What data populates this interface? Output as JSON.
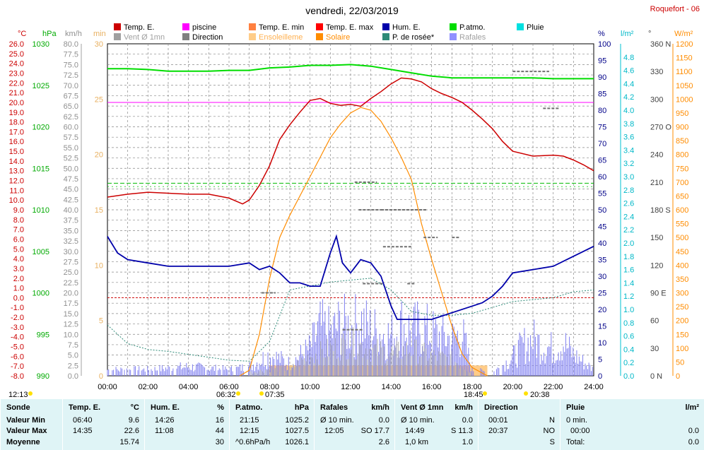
{
  "title": "vendredi, 22/03/2019",
  "station": "Roquefort - 06",
  "legend": [
    {
      "label": "Temp. E.",
      "color": "#cc0000"
    },
    {
      "label": "piscine",
      "color": "#ff00ff"
    },
    {
      "label": "Temp. E. min",
      "color": "#ff8040"
    },
    {
      "label": "Temp. E. max",
      "color": "#ff0000"
    },
    {
      "label": "Hum. E.",
      "color": "#0000aa"
    },
    {
      "label": "P.atmo.",
      "color": "#00dd00"
    },
    {
      "label": "Pluie",
      "color": "#00e0e0"
    },
    {
      "label": "Vent Ø 1mn",
      "color": "#a0a0a0"
    },
    {
      "label": "Direction",
      "color": "#808080"
    },
    {
      "label": "Ensoleilleme",
      "color": "#ffcc88"
    },
    {
      "label": "Solaire",
      "color": "#ff8c00"
    },
    {
      "label": "P. de rosée*",
      "color": "#2e8b78"
    },
    {
      "label": "Rafales",
      "color": "#9090ff"
    }
  ],
  "axis_units": {
    "temp": "°C",
    "pressure": "hPa",
    "wind": "km/h",
    "sunshine": "min",
    "humidity": "%",
    "rain": "l/m²",
    "direction": "°",
    "solar": "W/m²"
  },
  "axis_ticks": {
    "temp": [
      "26.0",
      "25.0",
      "24.0",
      "23.0",
      "22.0",
      "21.0",
      "20.0",
      "19.0",
      "18.0",
      "17.0",
      "16.0",
      "15.0",
      "14.0",
      "13.0",
      "12.0",
      "11.0",
      "10.0",
      "9.0",
      "8.0",
      "7.0",
      "6.0",
      "5.0",
      "4.0",
      "3.0",
      "2.0",
      "1.0",
      "0.0",
      "-1.0",
      "-2.0",
      "-3.0",
      "-4.0",
      "-5.0",
      "-6.0",
      "-7.0",
      "-8.0"
    ],
    "pressure": [
      "1030",
      "1025",
      "1020",
      "1015",
      "1010",
      "1005",
      "1000",
      "995",
      "990"
    ],
    "wind": [
      "80.0",
      "77.5",
      "75.0",
      "72.5",
      "70.0",
      "67.5",
      "65.0",
      "62.5",
      "60.0",
      "57.5",
      "55.0",
      "52.5",
      "50.0",
      "47.5",
      "45.0",
      "42.5",
      "40.0",
      "37.5",
      "35.0",
      "32.5",
      "30.0",
      "27.5",
      "25.0",
      "22.5",
      "20.0",
      "17.5",
      "15.0",
      "12.5",
      "10.0",
      "7.5",
      "5.0",
      "2.5",
      "0.0"
    ],
    "sunshine": [
      "30",
      "25",
      "20",
      "15",
      "10",
      "5",
      "0"
    ],
    "humidity": [
      "100",
      "95",
      "90",
      "85",
      "80",
      "75",
      "70",
      "65",
      "60",
      "55",
      "50",
      "45",
      "40",
      "35",
      "30",
      "25",
      "20",
      "15",
      "10",
      "5",
      "0"
    ],
    "rain": [
      "4.8",
      "4.6",
      "4.4",
      "4.2",
      "4.0",
      "3.8",
      "3.6",
      "3.4",
      "3.2",
      "3.0",
      "2.8",
      "2.6",
      "2.4",
      "2.2",
      "2.0",
      "1.8",
      "1.6",
      "1.4",
      "1.2",
      "1.0",
      "0.8",
      "0.6",
      "0.4",
      "0.2",
      "0.0"
    ],
    "direction": [
      "360 N",
      "330",
      "300",
      "270 O",
      "240",
      "210",
      "180 S",
      "150",
      "120",
      "90 E",
      "60",
      "30",
      "0 N"
    ],
    "solar": [
      "1200",
      "1150",
      "1100",
      "1050",
      "1000",
      "950",
      "900",
      "850",
      "800",
      "750",
      "700",
      "650",
      "600",
      "550",
      "500",
      "450",
      "400",
      "350",
      "300",
      "250",
      "200",
      "150",
      "100",
      "50",
      "0"
    ],
    "time": [
      "00:00",
      "02:00",
      "04:00",
      "06:00",
      "08:00",
      "10:00",
      "12:00",
      "14:00",
      "16:00",
      "18:00",
      "20:00",
      "22:00",
      "24:00"
    ]
  },
  "time_markers": [
    "12:13",
    "06:32",
    "07:35",
    "18:45",
    "20:38"
  ],
  "chart_data": {
    "type": "line",
    "x_unit": "hours",
    "xlim": [
      0,
      24
    ],
    "pool_temp": 20.0,
    "series": [
      {
        "name": "Temp. E.",
        "unit": "°C",
        "x": [
          0,
          1,
          2,
          3,
          4,
          5,
          6,
          6.67,
          7,
          7.5,
          8,
          8.5,
          9,
          9.5,
          10,
          10.5,
          11,
          11.5,
          12,
          12.5,
          13,
          13.5,
          14,
          14.5,
          15,
          15.5,
          16,
          16.5,
          17,
          17.5,
          18,
          18.5,
          19,
          19.5,
          20,
          21,
          22,
          22.5,
          23,
          23.5,
          24
        ],
        "y": [
          10.3,
          10.6,
          10.8,
          10.7,
          10.6,
          10.6,
          10.2,
          9.6,
          10.0,
          11.5,
          13.5,
          16.2,
          17.7,
          19.0,
          20.2,
          20.4,
          19.9,
          19.7,
          19.8,
          19.6,
          20.4,
          21.1,
          21.9,
          22.5,
          22.4,
          22.1,
          21.4,
          20.9,
          20.5,
          20.0,
          19.2,
          18.3,
          17.3,
          16.0,
          15.0,
          14.5,
          14.6,
          14.5,
          14.1,
          13.6,
          13.0
        ]
      },
      {
        "name": "Hum. E.",
        "unit": "%",
        "x": [
          0,
          0.5,
          1,
          2,
          3,
          4,
          5,
          6,
          7,
          7.5,
          8,
          8.5,
          9,
          9.5,
          10,
          10.5,
          11,
          11.3,
          11.6,
          12,
          12.5,
          13,
          13.5,
          14,
          14.3,
          15,
          16,
          17,
          18,
          18.5,
          19,
          19.5,
          20,
          21,
          22,
          23,
          24
        ],
        "y": [
          42,
          37,
          35,
          34,
          33,
          33,
          33,
          33,
          34,
          32,
          33,
          31,
          28,
          28,
          27,
          27,
          37,
          42,
          34,
          31,
          35,
          34,
          30,
          21,
          17,
          17,
          17,
          19,
          21,
          22,
          24,
          27,
          31,
          32,
          33,
          36,
          39
        ]
      },
      {
        "name": "P.atmo.",
        "unit": "hPa",
        "x": [
          0,
          1,
          2,
          3,
          4,
          5,
          6,
          7,
          8,
          9,
          10,
          11,
          12,
          13,
          14,
          15,
          16,
          17,
          18,
          19,
          20,
          21,
          22,
          23,
          24
        ],
        "y": [
          1027.0,
          1027.0,
          1026.9,
          1026.7,
          1026.7,
          1026.7,
          1026.8,
          1026.8,
          1027.1,
          1027.2,
          1027.4,
          1027.4,
          1027.5,
          1027.3,
          1026.9,
          1026.5,
          1026.1,
          1025.9,
          1025.9,
          1025.9,
          1025.9,
          1025.9,
          1025.8,
          1025.8,
          1025.8
        ]
      },
      {
        "name": "P. de rosée*",
        "unit": "°C",
        "x": [
          0,
          1,
          2,
          3,
          4,
          5,
          6,
          7,
          8,
          9,
          10,
          11,
          12,
          13,
          14,
          15,
          16,
          17,
          18,
          19,
          20,
          21,
          22,
          23,
          24
        ],
        "y": [
          -2.8,
          -4.7,
          -5.3,
          -5.5,
          -5.8,
          -6.1,
          -6.4,
          -6.5,
          -4.5,
          0.8,
          1.2,
          1.6,
          1.8,
          2.0,
          0.8,
          -1.4,
          -1.8,
          -1.8,
          -1.6,
          -1.0,
          -0.4,
          -0.2,
          0.0,
          0.6,
          0.8
        ]
      },
      {
        "name": "Solaire",
        "unit": "W/m²",
        "x": [
          6.53,
          7,
          7.5,
          8,
          8.5,
          9,
          9.5,
          10,
          10.5,
          11,
          11.5,
          12,
          12.5,
          13,
          13.5,
          14,
          14.5,
          15,
          15.5,
          16,
          16.5,
          17,
          17.5,
          18,
          18.75
        ],
        "y": [
          0,
          20,
          150,
          350,
          500,
          580,
          650,
          720,
          790,
          860,
          910,
          950,
          970,
          960,
          920,
          860,
          790,
          710,
          550,
          420,
          300,
          180,
          80,
          30,
          0
        ]
      },
      {
        "name": "Rafales",
        "unit": "km/h",
        "x": [
          0,
          2,
          4,
          6,
          7,
          8,
          9,
          10,
          10.5,
          11,
          11.5,
          12,
          12.5,
          13,
          13.5,
          14,
          14.5,
          15,
          15.5,
          16,
          16.5,
          17,
          17.5,
          18,
          19,
          20,
          20.5,
          21,
          21.5,
          22,
          22.5,
          23,
          24
        ],
        "y": [
          2,
          2,
          3,
          2,
          3,
          7,
          4,
          9,
          16,
          14,
          17,
          16,
          18,
          15,
          14,
          13,
          17,
          15,
          16,
          14,
          13,
          12,
          14,
          2,
          1,
          6,
          10,
          12,
          10,
          9,
          11,
          7,
          2
        ]
      },
      {
        "name": "Vent Ø 1mn",
        "unit": "km/h",
        "x": [
          7,
          8,
          9,
          10,
          11,
          12,
          13,
          14,
          15,
          16,
          17,
          18
        ],
        "y": [
          1,
          2,
          2,
          6,
          8,
          10,
          8,
          7,
          8,
          6,
          5,
          1
        ]
      }
    ]
  },
  "table": {
    "columns": [
      {
        "title": "Sonde",
        "unit": ""
      },
      {
        "title": "Temp. E.",
        "unit": "°C"
      },
      {
        "title": "Hum. E.",
        "unit": "%"
      },
      {
        "title": "P.atmo.",
        "unit": "hPa"
      },
      {
        "title": "Rafales",
        "unit": "km/h"
      },
      {
        "title": "Vent Ø 1mn",
        "unit": "km/h"
      },
      {
        "title": "Direction",
        "unit": ""
      },
      {
        "title": "Pluie",
        "unit": "l/m²"
      }
    ],
    "row_labels": [
      "Valeur Min",
      "Valeur Max",
      "Moyenne"
    ],
    "temp": {
      "min_time": "06:40",
      "min": "9.6",
      "max_time": "14:35",
      "max": "22.6",
      "avg": "15.74"
    },
    "hum": {
      "min_time": "14:26",
      "min": "16",
      "max_time": "11:08",
      "max": "44",
      "avg": "30"
    },
    "patmo": {
      "min_time": "21:15",
      "min": "1025.2",
      "max_time": "12:15",
      "max": "1027.5",
      "avg_label": "^0.6hPa/h",
      "avg": "1026.1"
    },
    "rafales": {
      "r1_label": "Ø 10 min.",
      "r1_val": "0.0",
      "r2_time": "12:05",
      "r2_val": "SO 17.7",
      "avg": "2.6"
    },
    "vent": {
      "r1_label": "Ø 10 min.",
      "r1_val": "0.0",
      "r2_time": "14:49",
      "r2_val": "S 11.3",
      "avg_label": "1,0 km",
      "avg": "1.0"
    },
    "direction": {
      "r1_time": "00:01",
      "r1_val": "N",
      "r2_time": "20:37",
      "r2_val": "NO",
      "avg": "S"
    },
    "pluie": {
      "r1_label": "0 min.",
      "r2_time": "00:00",
      "r2_val": "0.0",
      "avg_label": "Total:",
      "avg": "0.0"
    }
  }
}
